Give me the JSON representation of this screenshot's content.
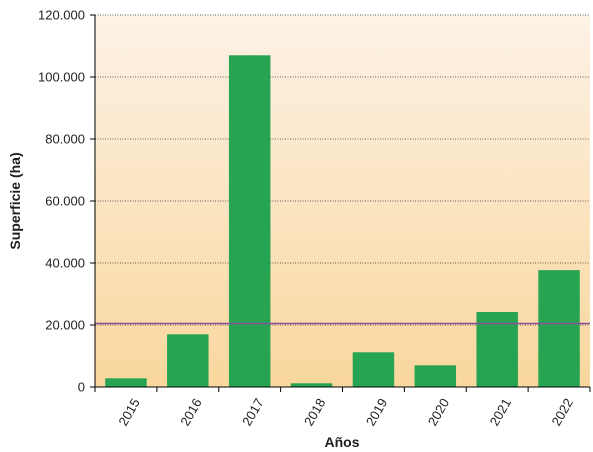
{
  "chart_data": {
    "type": "bar",
    "title": "",
    "xlabel": "Años",
    "ylabel": "Superficie (ha)",
    "categories": [
      "2015",
      "2016",
      "2017",
      "2018",
      "2019",
      "2020",
      "2021",
      "2022"
    ],
    "values": [
      2800,
      17000,
      107000,
      1200,
      11200,
      7000,
      24200,
      37700
    ],
    "ylim": [
      0,
      120000
    ],
    "yticks": [
      0,
      20000,
      40000,
      60000,
      80000,
      100000,
      120000
    ],
    "ytick_labels": [
      "0",
      "20.000",
      "40.000",
      "60.000",
      "80.000",
      "100.000",
      "120.000"
    ],
    "reference_line": 20500,
    "grid": true,
    "grid_style": "dotted",
    "legend": "none",
    "colors": {
      "bar": "#27a451",
      "reference_line": "#8a4f9e",
      "background_top": "#fdf2e6",
      "background_bottom": "#f9d79d",
      "axis": "#000000",
      "grid": "#333333"
    }
  }
}
